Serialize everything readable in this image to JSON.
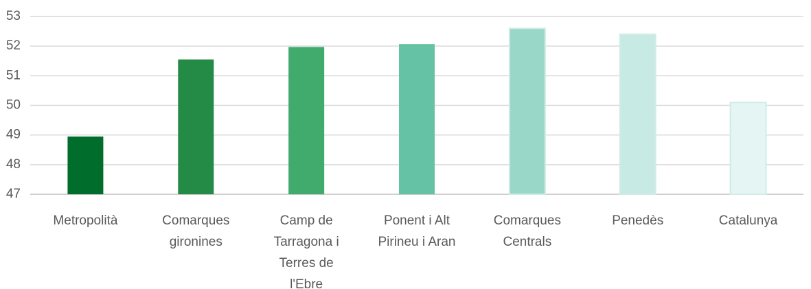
{
  "chart_data": {
    "type": "bar",
    "categories": [
      "Metropolità",
      "Comarques gironines",
      "Camp de Tarragona i Terres de l'Ebre",
      "Ponent i Alt Pirineu i Aran",
      "Comarques Centrals",
      "Penedès",
      "Catalunya"
    ],
    "values": [
      48.95,
      51.55,
      51.97,
      52.07,
      52.6,
      52.4,
      50.1
    ],
    "colors": [
      "#006d2c",
      "#238b45",
      "#41ab6e",
      "#66c2a4",
      "#99d8c9",
      "#c7eae5",
      "#e5f5f3"
    ],
    "ylim": [
      47,
      53
    ],
    "yticks": [
      47,
      48,
      49,
      50,
      51,
      52,
      53
    ],
    "grid": true
  }
}
